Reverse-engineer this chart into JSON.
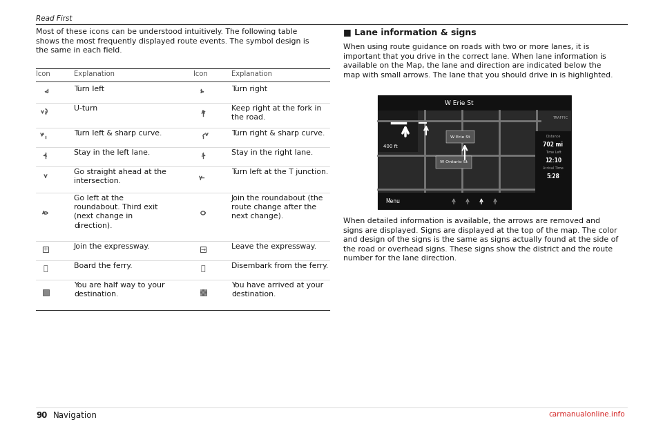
{
  "page_title": "Read First",
  "page_number": "90",
  "page_number_label": "Navigation",
  "bg_color": "#ffffff",
  "text_color": "#1a1a1a",
  "gray_text": "#555555",
  "line_color": "#333333",
  "thin_line_color": "#cccccc",
  "intro_text": "Most of these icons can be understood intuitively. The following table\nshows the most frequently displayed route events. The symbol design is\nthe same in each field.",
  "table_header": [
    "Icon",
    "Explanation",
    "Icon",
    "Explanation"
  ],
  "table_rows": [
    [
      "Turn left",
      "Turn right"
    ],
    [
      "U-turn",
      "Keep right at the fork in\nthe road."
    ],
    [
      "Turn left & sharp curve.",
      "Turn right & sharp curve."
    ],
    [
      "Stay in the left lane.",
      "Stay in the right lane."
    ],
    [
      "Go straight ahead at the\nintersection.",
      "Turn left at the T junction."
    ],
    [
      "Go left at the\nroundabout. Third exit\n(next change in\ndirection).",
      "Join the roundabout (the\nroute change after the\nnext change)."
    ],
    [
      "Join the expressway.",
      "Leave the expressway."
    ],
    [
      "Board the ferry.",
      "Disembark from the ferry."
    ],
    [
      "You are half way to your\ndestination.",
      "You have arrived at your\ndestination."
    ]
  ],
  "right_section_title": "■ Lane information & signs",
  "right_para1": "When using route guidance on roads with two or more lanes, it is\nimportant that you drive in the correct lane. When lane information is\navailable on the Map, the lane and direction are indicated below the\nmap with small arrows. The lane that you should drive in is highlighted.",
  "right_para2": "When detailed information is available, the arrows are removed and\nsigns are displayed. Signs are displayed at the top of the map. The color\nand design of the signs is the same as signs actually found at the side of\nthe road or overhead signs. These signs show the district and the route\nnumber for the lane direction.",
  "font_size_body": 7.8,
  "font_size_header_col": 7.2,
  "font_size_page": 8.5,
  "font_size_section": 9.0,
  "font_size_page_title": 7.5,
  "watermark_text": "carmanualonline.info",
  "watermark_color": "#cc0000",
  "map_dark_bg": "#2d2d2d",
  "map_header_bg": "#1a1a1a",
  "map_road_color": "#888888",
  "map_highlight_road": "#bbbbbb",
  "map_street_label_bg": "#555555"
}
